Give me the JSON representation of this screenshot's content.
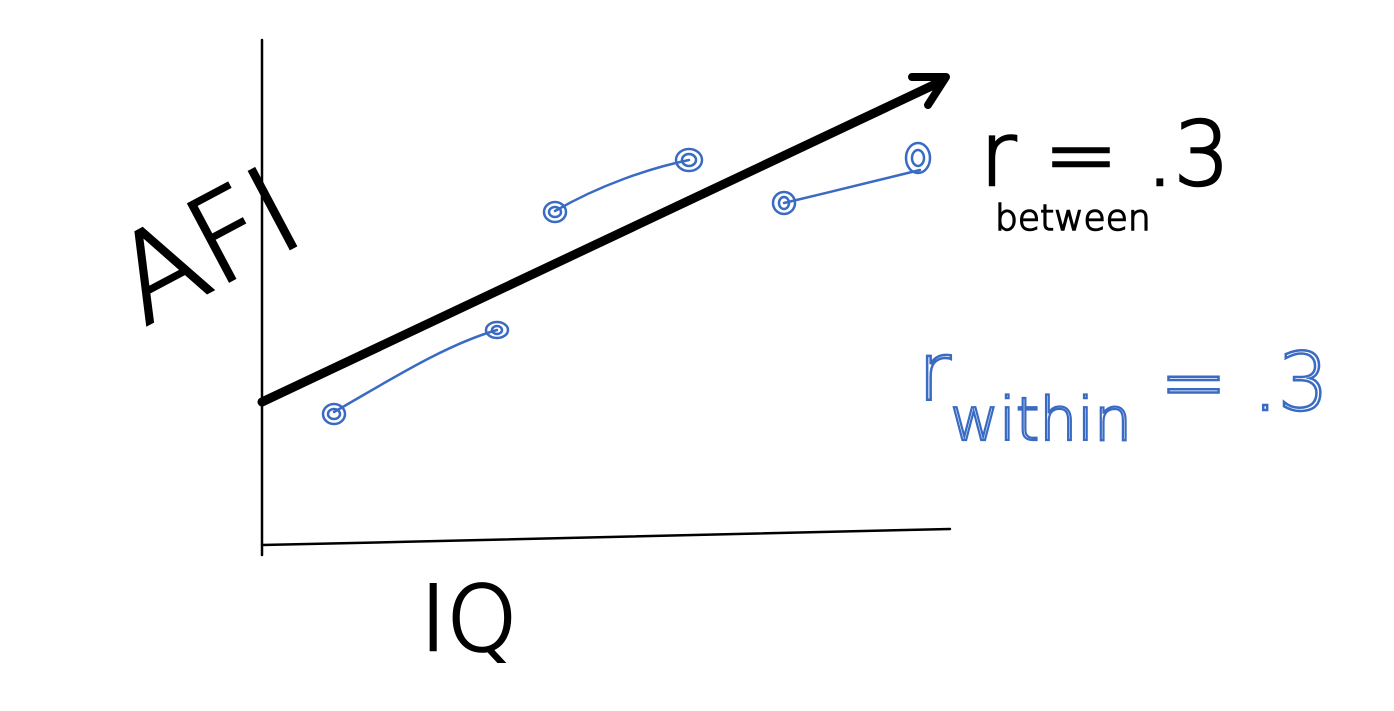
{
  "axes": {
    "y_label": "AFI",
    "x_label": "IQ"
  },
  "annotations": {
    "r_between_main": "r = .3",
    "r_between_sub": "between",
    "r_within": "r",
    "r_within_sub": "within",
    "r_within_value": "= .3"
  },
  "colors": {
    "ink": "#000000",
    "blue": "#3a6bc2"
  }
}
